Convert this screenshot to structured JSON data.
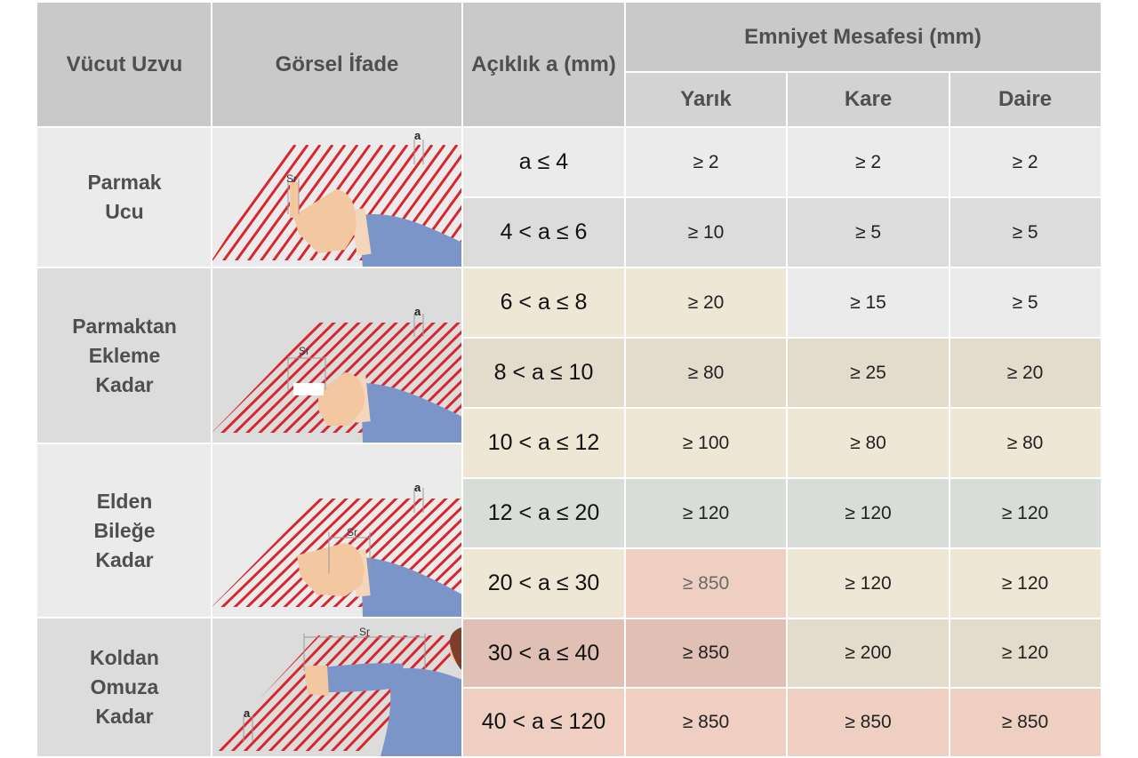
{
  "headers": {
    "body_part": "Vücut Uzvu",
    "visual": "Görsel İfade",
    "opening": "Açıklık a (mm)",
    "safety_distance": "Emniyet Mesafesi (mm)",
    "slot": "Yarık",
    "square": "Kare",
    "circle": "Daire"
  },
  "groups": [
    {
      "line1": "Parmak",
      "line2": "Ucu",
      "line3": ""
    },
    {
      "line1": "Parmaktan",
      "line2": "Ekleme",
      "line3": "Kadar"
    },
    {
      "line1": "Elden",
      "line2": "Bileğe",
      "line3": "Kadar"
    },
    {
      "line1": "Koldan",
      "line2": "Omuza",
      "line3": "Kadar"
    }
  ],
  "illustration_labels": {
    "opening": "a",
    "reach": "Sr"
  },
  "rows": [
    {
      "range": "a ≤ 4",
      "slot": "≥ 2",
      "square": "≥ 2",
      "circle": "≥ 2"
    },
    {
      "range": "4 < a ≤ 6",
      "slot": "≥ 10",
      "square": "≥ 5",
      "circle": "≥ 5"
    },
    {
      "range": "6 < a ≤ 8",
      "slot": "≥ 20",
      "square": "≥ 15",
      "circle": "≥ 5"
    },
    {
      "range": "8 < a ≤ 10",
      "slot": "≥ 80",
      "square": "≥ 25",
      "circle": "≥ 20"
    },
    {
      "range": "10 < a ≤ 12",
      "slot": "≥ 100",
      "square": "≥ 80",
      "circle": "≥ 80"
    },
    {
      "range": "12 < a ≤ 20",
      "slot": "≥ 120",
      "square": "≥ 120",
      "circle": "≥ 120"
    },
    {
      "range": "20 < a ≤ 30",
      "slot": "≥ 850",
      "square": "≥ 120",
      "circle": "≥ 120"
    },
    {
      "range": "30 < a ≤ 40",
      "slot": "≥ 850",
      "square": "≥ 200",
      "circle": "≥ 120"
    },
    {
      "range": "40 < a ≤ 120",
      "slot": "≥ 850",
      "square": "≥ 850",
      "circle": "≥ 850"
    }
  ],
  "colors": {
    "light_gray": "#ebebeb",
    "mid_gray": "#dcdcdc",
    "header_gray": "#c9c9c9",
    "cream": "#efe7d6",
    "beige": "#e3dccd",
    "sage": "#d8ddd7",
    "salmon": "#efcfc1",
    "dusty_rose": "#e0c0b4",
    "hatch_red": "#d9262b",
    "skin": "#f3c8a1",
    "sleeve": "#7c95c9",
    "hair": "#7b3f2a"
  }
}
